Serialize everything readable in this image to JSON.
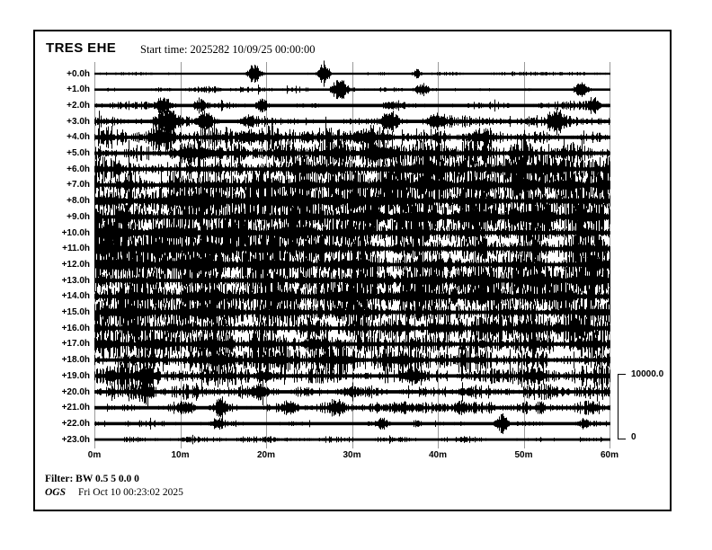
{
  "header": {
    "station": "TRES EHE",
    "start_time": "Start time: 2025282 10/09/25 00:00:00"
  },
  "scale": {
    "top": "10000.0",
    "bottom": "0"
  },
  "footer": {
    "filter": "Filter: BW 0.5 5 0.0 0",
    "agency": "OGS",
    "generated": "Fri Oct 10 00:23:02 2025"
  },
  "chart_data": {
    "type": "line",
    "subtype": "helicorder",
    "title": "TRES EHE",
    "start_label": "Start time: 2025282 10/09/25 00:00:00",
    "station": "TRES",
    "channel": "EHE",
    "minutes_per_row": 60,
    "x_tick_labels": [
      "0m",
      "10m",
      "20m",
      "30m",
      "40m",
      "50m",
      "60m"
    ],
    "x_tick_minutes": [
      0,
      10,
      20,
      30,
      40,
      50,
      60
    ],
    "row_labels": [
      "+0.0h",
      "+1.0h",
      "+2.0h",
      "+3.0h",
      "+4.0h",
      "+5.0h",
      "+6.0h",
      "+7.0h",
      "+8.0h",
      "+9.0h",
      "+10.0h",
      "+11.0h",
      "+12.0h",
      "+13.0h",
      "+14.0h",
      "+15.0h",
      "+16.0h",
      "+17.0h",
      "+18.0h",
      "+19.0h",
      "+20.0h",
      "+21.0h",
      "+22.0h",
      "+23.0h"
    ],
    "amplitude_scale": {
      "max": 10000.0,
      "min": 0
    },
    "grid_color": "#9a9a9a",
    "trace_color": "#000000",
    "rows": [
      {
        "label": "+0.0h",
        "noise": 1.3,
        "bursts": [
          [
            0.31,
            0.012,
            9
          ],
          [
            0.445,
            0.01,
            11
          ],
          [
            0.625,
            0.008,
            4
          ],
          [
            0.08,
            0.04,
            1.2
          ],
          [
            0.87,
            0.03,
            1.2
          ]
        ]
      },
      {
        "label": "+1.0h",
        "noise": 1.5,
        "bursts": [
          [
            0.475,
            0.012,
            12
          ],
          [
            0.635,
            0.012,
            6
          ],
          [
            0.945,
            0.012,
            7
          ],
          [
            0.22,
            0.04,
            1.3
          ]
        ]
      },
      {
        "label": "+2.0h",
        "noise": 2.4,
        "bursts": [
          [
            0.135,
            0.015,
            7
          ],
          [
            0.205,
            0.012,
            6
          ],
          [
            0.325,
            0.012,
            6
          ],
          [
            0.58,
            0.02,
            3
          ],
          [
            0.97,
            0.012,
            5
          ]
        ]
      },
      {
        "label": "+3.0h",
        "noise": 3.8,
        "bursts": [
          [
            0.14,
            0.02,
            11
          ],
          [
            0.215,
            0.015,
            8
          ],
          [
            0.3,
            0.015,
            5
          ],
          [
            0.575,
            0.015,
            9
          ],
          [
            0.665,
            0.02,
            5
          ],
          [
            0.9,
            0.015,
            8
          ]
        ]
      },
      {
        "label": "+4.0h",
        "noise": 6.5,
        "bursts": [
          [
            0.13,
            0.02,
            7
          ],
          [
            0.3,
            0.02,
            5
          ],
          [
            0.52,
            0.03,
            4
          ],
          [
            0.75,
            0.02,
            4
          ]
        ]
      },
      {
        "label": "+5.0h",
        "noise": 9.5,
        "bursts": [
          [
            0.2,
            0.04,
            4
          ],
          [
            0.55,
            0.04,
            3
          ]
        ]
      },
      {
        "label": "+6.0h",
        "noise": 12.5,
        "bursts": []
      },
      {
        "label": "+7.0h",
        "noise": 14.5,
        "bursts": []
      },
      {
        "label": "+8.0h",
        "noise": 15.5,
        "bursts": []
      },
      {
        "label": "+9.0h",
        "noise": 15.5,
        "bursts": []
      },
      {
        "label": "+10.0h",
        "noise": 15.0,
        "bursts": []
      },
      {
        "label": "+11.0h",
        "noise": 14.5,
        "bursts": []
      },
      {
        "label": "+12.0h",
        "noise": 14.5,
        "bursts": []
      },
      {
        "label": "+13.0h",
        "noise": 14.0,
        "bursts": []
      },
      {
        "label": "+14.0h",
        "noise": 13.5,
        "bursts": []
      },
      {
        "label": "+15.0h",
        "noise": 13.0,
        "bursts": []
      },
      {
        "label": "+16.0h",
        "noise": 12.5,
        "bursts": []
      },
      {
        "label": "+17.0h",
        "noise": 11.5,
        "bursts": []
      },
      {
        "label": "+18.0h",
        "noise": 10.5,
        "bursts": [
          [
            0.25,
            0.02,
            5
          ]
        ]
      },
      {
        "label": "+19.0h",
        "noise": 8.0,
        "bursts": [
          [
            0.1,
            0.015,
            7
          ],
          [
            0.33,
            0.02,
            4
          ],
          [
            0.62,
            0.02,
            4
          ],
          [
            0.86,
            0.02,
            4
          ]
        ]
      },
      {
        "label": "+20.0h",
        "noise": 5.5,
        "bursts": [
          [
            0.1,
            0.012,
            8
          ],
          [
            0.32,
            0.02,
            4
          ],
          [
            0.5,
            0.03,
            3
          ],
          [
            0.72,
            0.02,
            3
          ]
        ]
      },
      {
        "label": "+21.0h",
        "noise": 3.8,
        "bursts": [
          [
            0.175,
            0.02,
            5
          ],
          [
            0.245,
            0.012,
            9
          ],
          [
            0.38,
            0.015,
            5
          ],
          [
            0.47,
            0.015,
            6
          ],
          [
            0.6,
            0.02,
            4
          ],
          [
            0.71,
            0.015,
            5
          ],
          [
            0.97,
            0.01,
            4
          ]
        ]
      },
      {
        "label": "+22.0h",
        "noise": 2.3,
        "bursts": [
          [
            0.24,
            0.012,
            5
          ],
          [
            0.56,
            0.015,
            4
          ],
          [
            0.625,
            0.01,
            3
          ],
          [
            0.79,
            0.012,
            8
          ],
          [
            0.95,
            0.012,
            4
          ]
        ]
      },
      {
        "label": "+23.0h",
        "noise": 1.7,
        "bursts": [
          [
            0.72,
            0.03,
            1.5
          ],
          [
            0.35,
            0.05,
            0.7
          ]
        ]
      }
    ]
  }
}
